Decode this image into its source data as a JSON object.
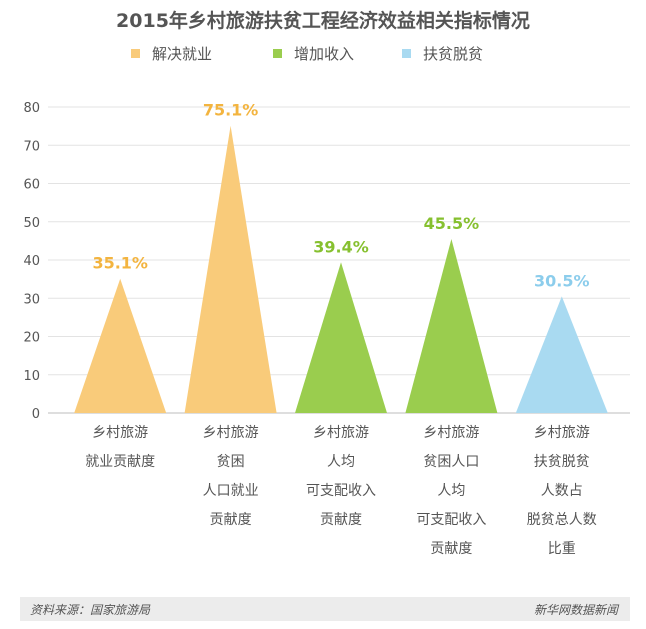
{
  "chart_data": {
    "type": "bar",
    "title": "2015年乡村旅游扶贫工程经济效益相关指标情况",
    "xlabel": "",
    "ylabel": "",
    "ylim": [
      0,
      80
    ],
    "yticks": [
      0,
      10,
      20,
      30,
      40,
      50,
      60,
      70,
      80
    ],
    "grid": true,
    "legend_position": "top-center",
    "legend": [
      {
        "name": "解决就业",
        "color": "#f9cb7a"
      },
      {
        "name": "增加收入",
        "color": "#9acd4e"
      },
      {
        "name": "扶贫脱贫",
        "color": "#a9daf1"
      }
    ],
    "categories": [
      [
        "乡村旅游",
        "就业贡献度"
      ],
      [
        "乡村旅游",
        "贫困",
        "人口就业",
        "贡献度"
      ],
      [
        "乡村旅游",
        "人均",
        "可支配收入",
        "贡献度"
      ],
      [
        "乡村旅游",
        "贫困人口",
        "人均",
        "可支配收入",
        "贡献度"
      ],
      [
        "乡村旅游",
        "扶贫脱贫",
        "人数占",
        "脱贫总人数",
        "比重"
      ]
    ],
    "values": [
      35.1,
      75.1,
      39.4,
      45.5,
      30.5
    ],
    "data_labels": [
      "35.1%",
      "75.1%",
      "39.4%",
      "45.5%",
      "30.5%"
    ],
    "bar_groups": [
      0,
      0,
      1,
      1,
      2
    ],
    "label_colors": [
      "#f3b43f",
      "#f3b43f",
      "#86c02f",
      "#86c02f",
      "#8ccdec"
    ]
  },
  "footer": {
    "source": "资料来源：国家旅游局",
    "credit": "新华网数据新闻"
  }
}
